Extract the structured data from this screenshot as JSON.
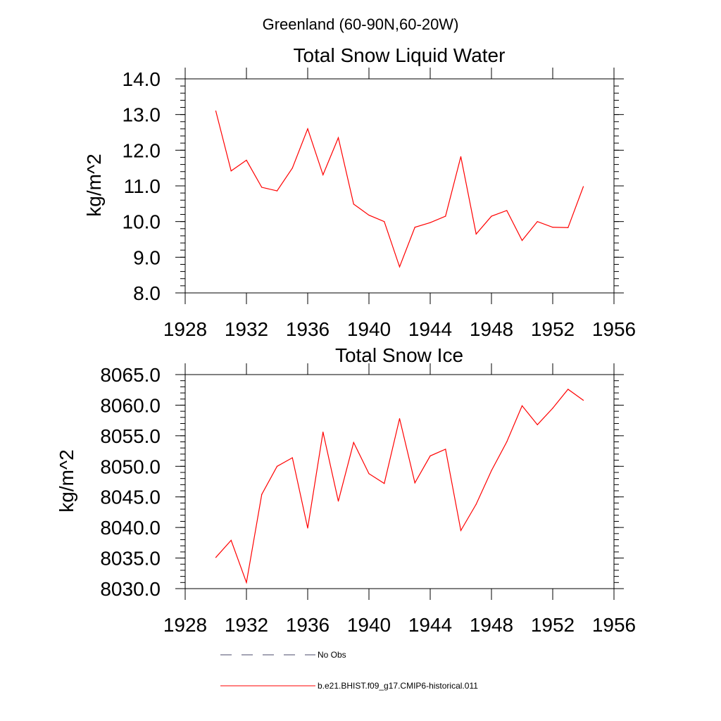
{
  "main_title": "Greenland (60-90N,60-20W)",
  "legend": [
    {
      "label": "No Obs",
      "color": "#4a4a6a",
      "style": "dashed"
    },
    {
      "label": "b.e21.BHIST.f09_g17.CMIP6-historical.011",
      "color": "#ff0000",
      "style": "solid"
    }
  ],
  "chart_data": [
    {
      "type": "line",
      "title": "Total Snow Liquid Water",
      "ylabel": "kg/m^2",
      "xlabel": "",
      "xlim": [
        1928,
        1956
      ],
      "ylim": [
        8.0,
        14.0
      ],
      "xticks": [
        "1928",
        "1932",
        "1936",
        "1940",
        "1944",
        "1948",
        "1952",
        "1956"
      ],
      "yticks": [
        "8.0",
        "9.0",
        "10.0",
        "11.0",
        "12.0",
        "13.0",
        "14.0"
      ],
      "x": [
        1930,
        1931,
        1932,
        1933,
        1934,
        1935,
        1936,
        1937,
        1938,
        1939,
        1940,
        1941,
        1942,
        1943,
        1944,
        1945,
        1946,
        1947,
        1948,
        1949,
        1950,
        1951,
        1952,
        1953,
        1954
      ],
      "series": [
        {
          "name": "b.e21.BHIST.f09_g17.CMIP6-historical.011",
          "color": "#ff0000",
          "values": [
            13.1,
            11.42,
            11.72,
            10.96,
            10.86,
            11.5,
            12.6,
            11.31,
            12.35,
            10.49,
            10.18,
            10.0,
            8.73,
            9.84,
            9.97,
            10.15,
            11.82,
            9.65,
            10.15,
            10.31,
            9.47,
            10.0,
            9.84,
            9.83,
            10.98
          ]
        }
      ]
    },
    {
      "type": "line",
      "title": "Total Snow Ice",
      "ylabel": "kg/m^2",
      "xlabel": "",
      "xlim": [
        1928,
        1956
      ],
      "ylim": [
        8030.0,
        8065.0
      ],
      "xticks": [
        "1928",
        "1932",
        "1936",
        "1940",
        "1944",
        "1948",
        "1952",
        "1956"
      ],
      "yticks": [
        "8030.0",
        "8035.0",
        "8040.0",
        "8045.0",
        "8050.0",
        "8055.0",
        "8060.0",
        "8065.0"
      ],
      "x": [
        1930,
        1931,
        1932,
        1933,
        1934,
        1935,
        1936,
        1937,
        1938,
        1939,
        1940,
        1941,
        1942,
        1943,
        1944,
        1945,
        1946,
        1947,
        1948,
        1949,
        1950,
        1951,
        1952,
        1953,
        1954
      ],
      "series": [
        {
          "name": "b.e21.BHIST.f09_g17.CMIP6-historical.011",
          "color": "#ff0000",
          "values": [
            8035.1,
            8037.9,
            8031.0,
            8045.4,
            8050.0,
            8051.4,
            8039.9,
            8055.6,
            8044.3,
            8053.9,
            8048.8,
            8047.2,
            8057.8,
            8047.3,
            8051.7,
            8052.8,
            8039.5,
            8043.8,
            8049.3,
            8054.0,
            8059.9,
            8056.8,
            8059.5,
            8062.6,
            8060.8
          ]
        }
      ]
    }
  ]
}
